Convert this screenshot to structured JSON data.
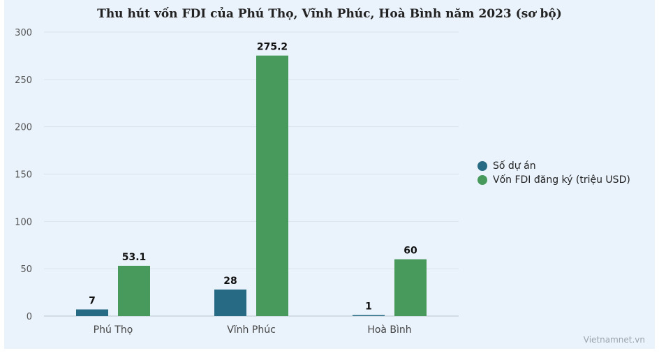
{
  "chart_data": {
    "type": "bar",
    "title": "Thu hút vốn FDI của Phú Thọ, Vĩnh Phúc, Hoà Bình năm 2023 (sơ bộ)",
    "categories": [
      "Phú Thọ",
      "Vĩnh Phúc",
      "Hoà Bình"
    ],
    "series": [
      {
        "name": "Số dự án",
        "values": [
          7,
          28,
          1
        ],
        "color": "#276a83"
      },
      {
        "name": "Vốn FDI đăng ký (triệu USD)",
        "values": [
          53.1,
          275.2,
          60
        ],
        "color": "#479a5c"
      }
    ],
    "data_labels": [
      [
        "7",
        "28",
        "1"
      ],
      [
        "53.1",
        "275.2",
        "60"
      ]
    ],
    "ylim": [
      0,
      300
    ],
    "yticks": [
      0,
      50,
      100,
      150,
      200,
      250,
      300
    ],
    "grid": true,
    "legend_position": "right"
  },
  "watermark": "Vietnamnet.vn"
}
